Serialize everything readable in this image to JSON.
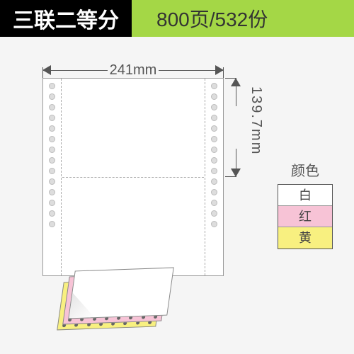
{
  "header": {
    "title": "三联二等分",
    "subtitle": "800页/532份",
    "bg_color": "#a4d746",
    "title_bg": "#000000",
    "title_color": "#ffffff"
  },
  "dimensions": {
    "width_label": "241mm",
    "height_label": "139.7mm",
    "label_color": "#555555"
  },
  "paper": {
    "bg": "#ffffff",
    "border": "#999999",
    "hole_count_per_side": 14
  },
  "stack": {
    "layers": [
      {
        "name": "yellow",
        "color": "#f8f080"
      },
      {
        "name": "pink",
        "color": "#f7c3d6"
      },
      {
        "name": "white",
        "color": "#ffffff"
      }
    ]
  },
  "legend": {
    "title": "颜色",
    "items": [
      {
        "label": "白",
        "bg": "#ffffff"
      },
      {
        "label": "红",
        "bg": "#f7c3d6"
      },
      {
        "label": "黄",
        "bg": "#f8f080"
      }
    ]
  }
}
